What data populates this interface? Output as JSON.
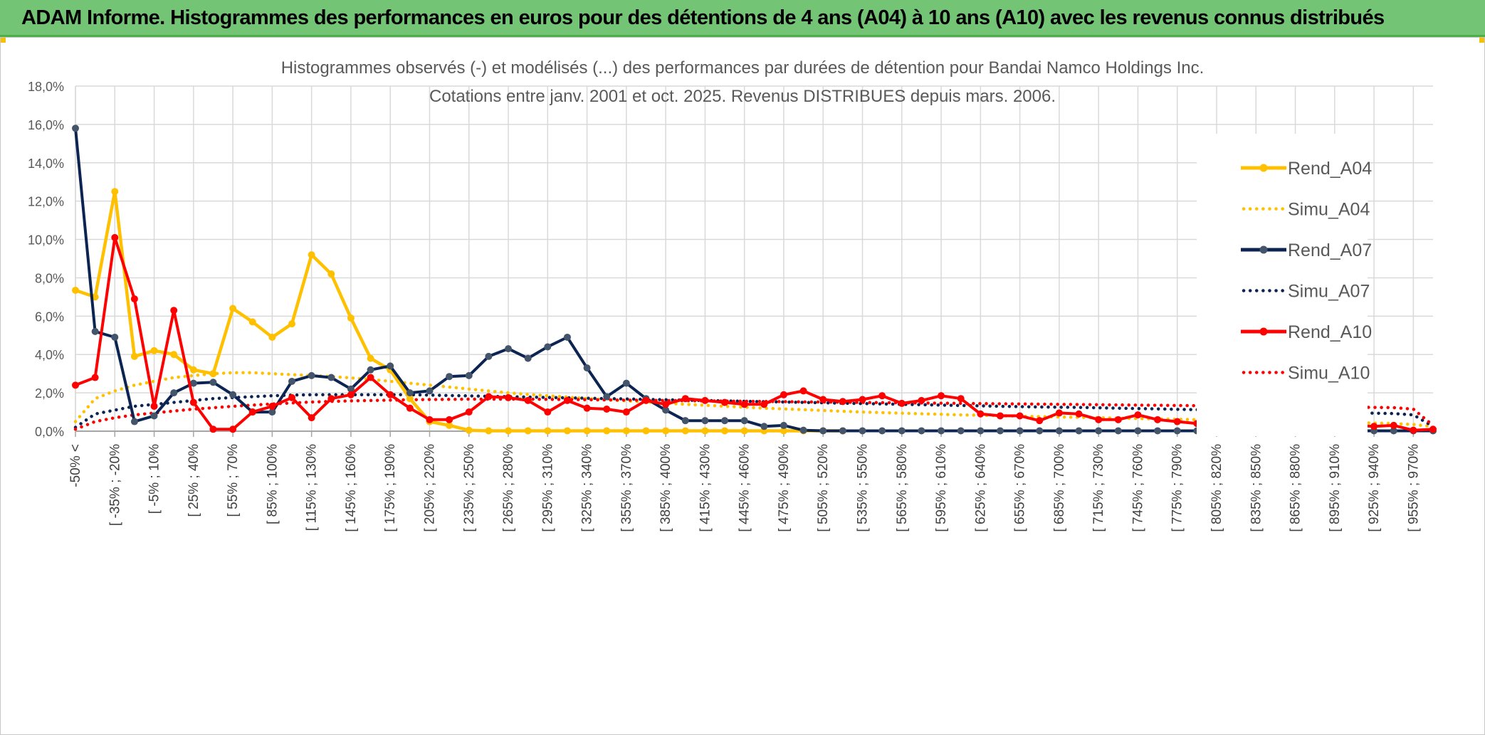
{
  "header": {
    "title": "ADAM Informe. Histogrammes des performances en euros pour des détentions de 4 ans (A04) à 10 ans (A10) avec les revenus connus distribués"
  },
  "colors": {
    "header_bg": "#74c476",
    "rend_a04": "#ffc000",
    "rend_a07": "#0c2452",
    "rend_a10": "#ff0000",
    "grid": "#d9d9d9"
  },
  "chart_data": {
    "type": "line",
    "title": "Histogrammes observés (-) et modélisés (...) des performances par durées de détention pour Bandai Namco Holdings Inc.",
    "subtitle": "Cotations entre janv. 2001 et oct. 2025. Revenus DISTRIBUES depuis mars. 2006.",
    "xlabel": "",
    "ylabel": "",
    "ylim": [
      0,
      18
    ],
    "y_ticks": [
      "0,0%",
      "2,0%",
      "4,0%",
      "6,0%",
      "8,0%",
      "10,0%",
      "12,0%",
      "14,0%",
      "16,0%",
      "18,0%"
    ],
    "x_tick_labels": [
      "-50% <",
      "[ -35% ; -20%",
      "[ -5% ; 10%",
      "[ 25% ; 40%",
      "[ 55% ; 70%",
      "[ 85% ; 100%",
      "[ 115% ; 130%",
      "[ 145% ; 160%",
      "[ 175% ; 190%",
      "[ 205% ; 220%",
      "[ 235% ; 250%",
      "[ 265% ; 280%",
      "[ 295% ; 310%",
      "[ 325% ; 340%",
      "[ 355% ; 370%",
      "[ 385% ; 400%",
      "[ 415% ; 430%",
      "[ 445% ; 460%",
      "[ 475% ; 490%",
      "[ 505% ; 520%",
      "[ 535% ; 550%",
      "[ 565% ; 580%",
      "[ 595% ; 610%",
      "[ 625% ; 640%",
      "[ 655% ; 670%",
      "[ 685% ; 700%",
      "[ 715% ; 730%",
      "[ 745% ; 760%",
      "[ 775% ; 790%",
      "[ 805% ; 820%",
      "[ 835% ; 850%",
      "[ 865% ; 880%",
      "[ 895% ; 910%",
      "[ 925% ; 940%",
      "[ 955% ; 970%"
    ],
    "x_count": 70,
    "legend_position": "right",
    "grid": true,
    "series": [
      {
        "name": "Rend_A04",
        "style": "solid",
        "color": "#ffc000",
        "values": [
          7.35,
          7.0,
          12.5,
          3.9,
          4.2,
          4.0,
          3.2,
          3.0,
          6.4,
          5.7,
          4.9,
          5.6,
          9.2,
          8.2,
          5.9,
          3.8,
          3.2,
          1.7,
          0.5,
          0.3,
          0.05,
          0.02,
          0.02,
          0.02,
          0.02,
          0.02,
          0.02,
          0.02,
          0.02,
          0.02,
          0.02,
          0.02,
          0.02,
          0.02,
          0.02,
          0.02,
          0.02,
          0.02,
          0.02,
          0.02,
          null,
          null,
          null,
          null,
          null,
          null,
          null,
          null,
          null,
          null,
          null,
          null,
          null,
          null,
          null,
          null,
          null,
          null,
          null,
          null,
          null,
          null,
          null,
          null,
          null,
          null,
          null,
          null,
          null,
          null
        ]
      },
      {
        "name": "Simu_A04",
        "style": "dotted",
        "color": "#ffc000",
        "values": [
          0.5,
          1.7,
          2.1,
          2.4,
          2.6,
          2.8,
          2.9,
          3.0,
          3.05,
          3.05,
          3.0,
          2.95,
          2.9,
          2.85,
          2.78,
          2.7,
          2.6,
          2.5,
          2.4,
          2.3,
          2.2,
          2.1,
          2.0,
          1.92,
          1.85,
          1.78,
          1.7,
          1.64,
          1.58,
          1.52,
          1.46,
          1.4,
          1.35,
          1.3,
          1.25,
          1.2,
          1.16,
          1.12,
          1.08,
          1.04,
          1.0,
          0.97,
          0.94,
          0.91,
          0.88,
          0.85,
          0.83,
          0.81,
          0.78,
          0.76,
          0.74,
          0.72,
          0.7,
          0.68,
          0.66,
          0.64,
          0.62,
          0.6,
          0.58,
          0.56,
          0.54,
          0.52,
          0.5,
          0.48,
          0.46,
          0.44,
          0.42,
          0.4,
          0.35,
          0.25
        ]
      },
      {
        "name": "Rend_A07",
        "style": "solid",
        "color": "#0c2452",
        "values": [
          15.8,
          5.2,
          4.9,
          0.5,
          0.8,
          2.0,
          2.5,
          2.55,
          1.9,
          1.0,
          1.0,
          2.6,
          2.9,
          2.8,
          2.2,
          3.2,
          3.4,
          2.0,
          2.1,
          2.85,
          2.9,
          3.9,
          4.3,
          3.8,
          4.4,
          4.9,
          3.3,
          1.8,
          2.5,
          1.7,
          1.1,
          0.55,
          0.55,
          0.55,
          0.55,
          0.25,
          0.3,
          0.05,
          0.02,
          0.02,
          0.02,
          0.02,
          0.02,
          0.02,
          0.02,
          0.02,
          0.02,
          0.02,
          0.02,
          0.02,
          0.02,
          0.02,
          0.02,
          0.02,
          0.02,
          0.02,
          0.02,
          0.02,
          0.02,
          0.02,
          0.02,
          0.02,
          0.02,
          0.02,
          0.02,
          0.02,
          0.02,
          0.02,
          0.02,
          0.02
        ]
      },
      {
        "name": "Simu_A07",
        "style": "dotted",
        "color": "#0c2452",
        "values": [
          0.2,
          0.9,
          1.1,
          1.3,
          1.4,
          1.5,
          1.6,
          1.7,
          1.75,
          1.8,
          1.85,
          1.88,
          1.9,
          1.9,
          1.9,
          1.9,
          1.9,
          1.9,
          1.88,
          1.86,
          1.84,
          1.82,
          1.8,
          1.78,
          1.76,
          1.74,
          1.72,
          1.7,
          1.68,
          1.66,
          1.64,
          1.62,
          1.6,
          1.58,
          1.56,
          1.54,
          1.52,
          1.5,
          1.48,
          1.46,
          1.44,
          1.42,
          1.4,
          1.38,
          1.36,
          1.34,
          1.32,
          1.3,
          1.28,
          1.26,
          1.25,
          1.24,
          1.22,
          1.2,
          1.18,
          1.16,
          1.14,
          1.12,
          1.1,
          1.08,
          1.06,
          1.04,
          1.02,
          1.0,
          0.98,
          0.96,
          0.94,
          0.92,
          0.85,
          0.25
        ]
      },
      {
        "name": "Rend_A10",
        "style": "solid",
        "color": "#ff0000",
        "values": [
          2.4,
          2.8,
          10.1,
          6.9,
          1.3,
          6.3,
          1.5,
          0.1,
          0.1,
          1.0,
          1.3,
          1.75,
          0.7,
          1.7,
          1.9,
          2.8,
          1.9,
          1.2,
          0.6,
          0.6,
          1.0,
          1.8,
          1.75,
          1.6,
          1.0,
          1.6,
          1.2,
          1.15,
          1.0,
          1.6,
          1.4,
          1.7,
          1.6,
          1.5,
          1.4,
          1.4,
          1.9,
          2.1,
          1.65,
          1.55,
          1.65,
          1.85,
          1.45,
          1.6,
          1.85,
          1.7,
          0.9,
          0.8,
          0.8,
          0.55,
          0.95,
          0.9,
          0.6,
          0.6,
          0.85,
          0.6,
          0.5,
          0.4,
          0.6,
          0.2,
          0.3,
          0.2,
          0.1,
          0.3,
          0.2,
          0.3,
          0.25,
          0.3,
          0.05,
          0.1
        ]
      },
      {
        "name": "Simu_A10",
        "style": "dotted",
        "color": "#ff0000",
        "values": [
          0.1,
          0.5,
          0.7,
          0.85,
          0.95,
          1.05,
          1.15,
          1.22,
          1.3,
          1.36,
          1.42,
          1.47,
          1.52,
          1.55,
          1.58,
          1.6,
          1.62,
          1.64,
          1.65,
          1.66,
          1.67,
          1.67,
          1.67,
          1.67,
          1.66,
          1.65,
          1.64,
          1.63,
          1.62,
          1.61,
          1.6,
          1.59,
          1.58,
          1.57,
          1.56,
          1.55,
          1.54,
          1.53,
          1.52,
          1.51,
          1.5,
          1.49,
          1.48,
          1.47,
          1.46,
          1.45,
          1.44,
          1.43,
          1.42,
          1.41,
          1.4,
          1.39,
          1.38,
          1.37,
          1.36,
          1.35,
          1.34,
          1.33,
          1.32,
          1.31,
          1.3,
          1.29,
          1.28,
          1.27,
          1.26,
          1.25,
          1.24,
          1.23,
          1.15,
          0.3
        ]
      }
    ]
  }
}
